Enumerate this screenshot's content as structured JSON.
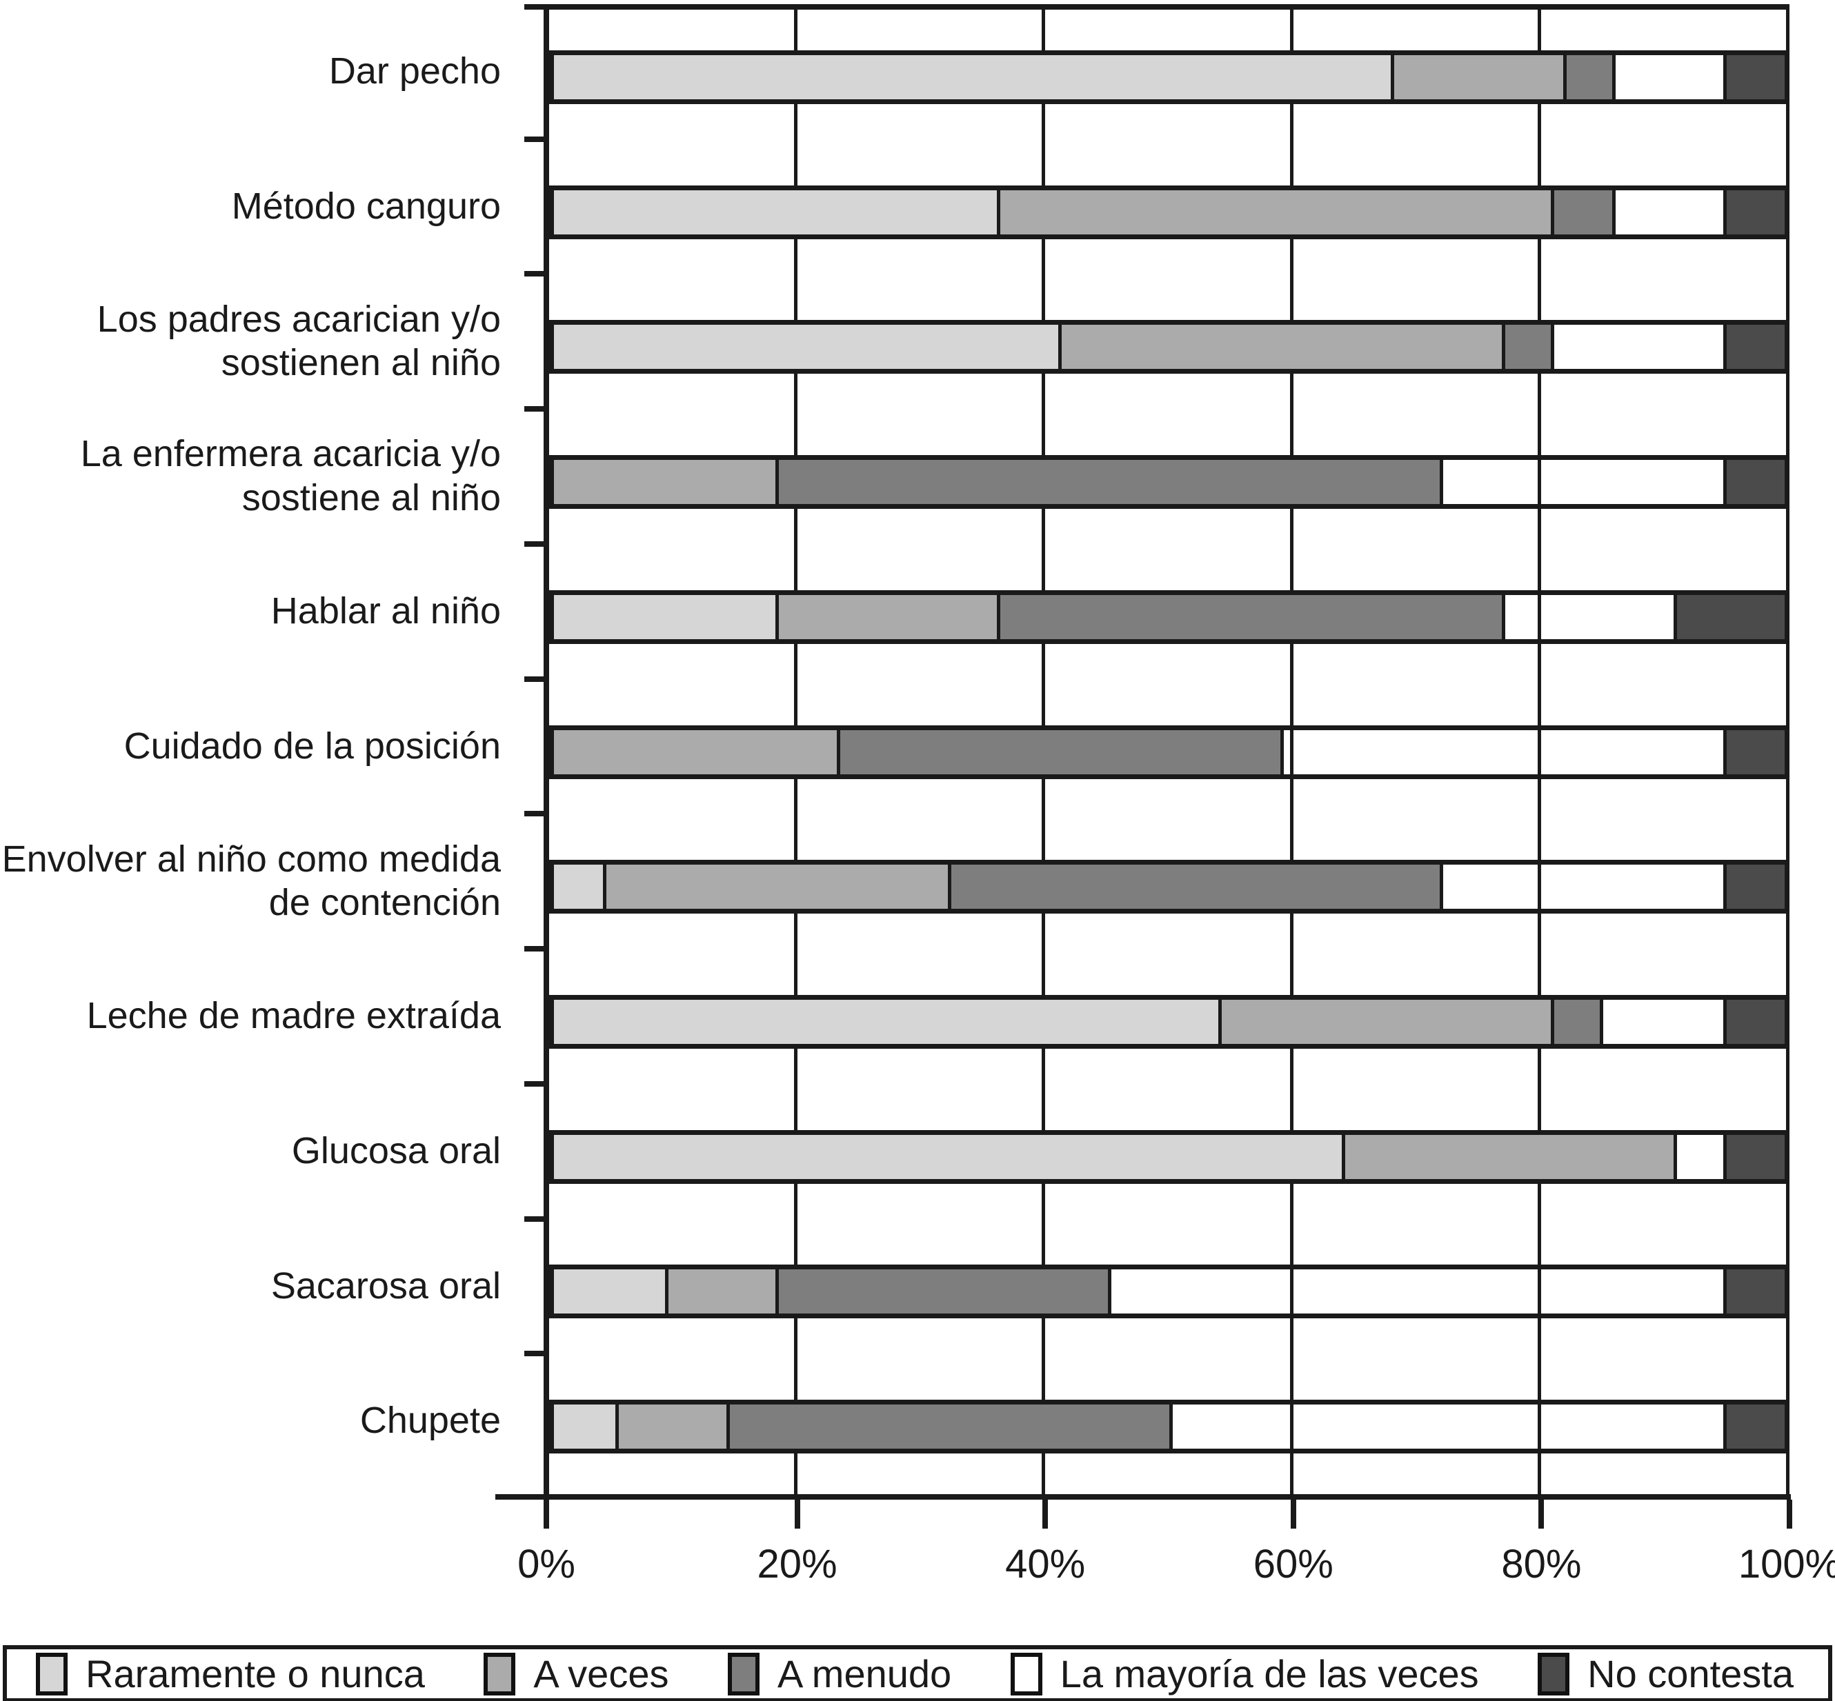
{
  "chart_data": {
    "type": "bar",
    "stacked": true,
    "orientation": "horizontal",
    "title": "",
    "xlabel": "",
    "ylabel": "",
    "xlim": [
      0,
      100
    ],
    "x_ticks": [
      "0%",
      "20%",
      "40%",
      "60%",
      "80%",
      "100%"
    ],
    "x_tick_values": [
      0,
      20,
      40,
      60,
      80,
      100
    ],
    "grid": "vertical gridlines every 20%, visible through unfilled (white) segments",
    "legend_position": "bottom",
    "categories": [
      "Dar pecho",
      "Método canguro",
      "Los padres acarician y/o sostienen al niño",
      "La enfermera acaricia y/o sostiene al niño",
      "Hablar al niño",
      "Cuidado de la posición",
      "Envolver al niño como medida de contención",
      "Leche de madre extraída",
      "Glucosa oral",
      "Sacarosa oral",
      "Chupete"
    ],
    "series": [
      {
        "name": "Raramente o nunca",
        "color": "#d6d6d6",
        "values": [
          68,
          36,
          41,
          0,
          18,
          0,
          4,
          54,
          64,
          9,
          5
        ]
      },
      {
        "name": "A veces",
        "color": "#ababab",
        "values": [
          14,
          45,
          36,
          18,
          18,
          23,
          28,
          27,
          27,
          9,
          9
        ]
      },
      {
        "name": "A menudo",
        "color": "#7e7e7e",
        "values": [
          4,
          5,
          4,
          54,
          41,
          36,
          40,
          4,
          0,
          27,
          36
        ]
      },
      {
        "name": "La mayoría de las veces",
        "color": "#ffffff",
        "values": [
          9,
          9,
          14,
          23,
          14,
          36,
          23,
          10,
          4,
          50,
          45
        ]
      },
      {
        "name": "No contesta",
        "color": "#4b4b4b",
        "values": [
          5,
          5,
          5,
          5,
          9,
          5,
          5,
          5,
          5,
          5,
          5
        ]
      }
    ],
    "line_color": "#1a1a1a"
  }
}
